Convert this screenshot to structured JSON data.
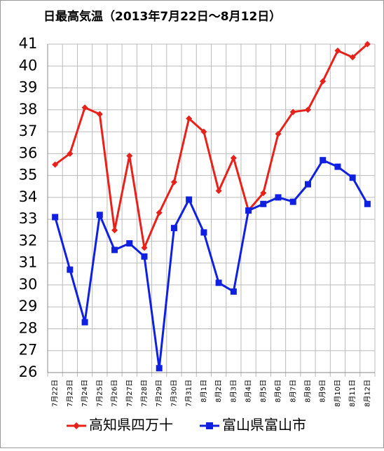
{
  "chart_data": {
    "type": "line",
    "title": "日最高気温（2013年7月22日～8月12日）",
    "categories": [
      "7月22日",
      "7月23日",
      "7月24日",
      "7月25日",
      "7月26日",
      "7月27日",
      "7月28日",
      "7月29日",
      "7月30日",
      "7月31日",
      "8月1日",
      "8月2日",
      "8月3日",
      "8月4日",
      "8月5日",
      "8月6日",
      "8月7日",
      "8月8日",
      "8月9日",
      "8月10日",
      "8月11日",
      "8月12日"
    ],
    "series": [
      {
        "name": "高知県四万十",
        "color": "#e8211a",
        "values": [
          35.5,
          36.0,
          38.1,
          37.8,
          32.5,
          35.9,
          31.7,
          33.3,
          34.7,
          37.6,
          37.0,
          34.3,
          35.8,
          33.4,
          34.2,
          36.9,
          37.9,
          38.0,
          39.3,
          40.7,
          40.4,
          41.0
        ]
      },
      {
        "name": "富山県富山市",
        "color": "#1020e0",
        "values": [
          33.1,
          30.7,
          28.3,
          33.2,
          31.6,
          31.9,
          31.3,
          26.2,
          32.6,
          33.9,
          32.4,
          30.1,
          29.7,
          33.4,
          33.7,
          34.0,
          33.8,
          34.6,
          35.7,
          35.4,
          34.9,
          33.7
        ]
      }
    ],
    "ylim": [
      26,
      41
    ],
    "yticks": [
      26,
      27,
      28,
      29,
      30,
      31,
      32,
      33,
      34,
      35,
      36,
      37,
      38,
      39,
      40,
      41
    ],
    "grid": true
  }
}
